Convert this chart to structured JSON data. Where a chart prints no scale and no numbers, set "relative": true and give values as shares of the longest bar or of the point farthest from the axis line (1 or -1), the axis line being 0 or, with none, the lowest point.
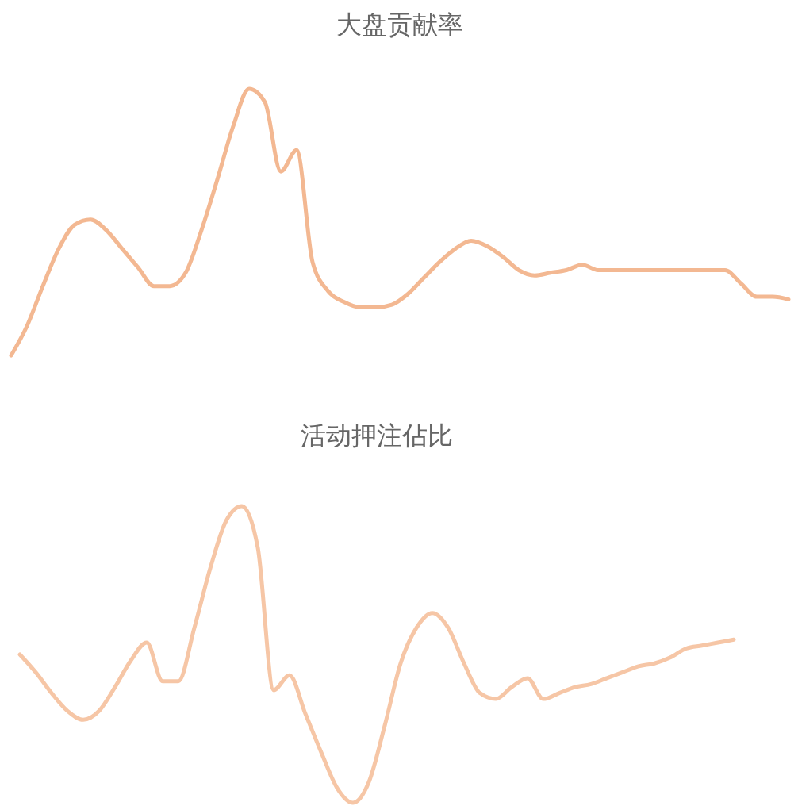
{
  "chart_data": [
    {
      "type": "line",
      "title": "大盘贡献率",
      "relative": true,
      "categories": [
        null,
        null,
        null,
        null,
        null,
        null,
        null,
        null,
        null,
        null,
        null,
        null,
        null,
        null,
        null,
        null,
        null,
        null,
        null,
        null,
        null,
        null,
        null,
        null,
        null,
        null,
        null,
        null,
        null,
        null,
        null,
        null,
        null,
        null,
        null,
        null,
        null,
        null,
        null,
        null,
        null,
        null,
        null,
        null,
        null,
        null,
        null,
        null,
        null,
        null
      ],
      "series": [
        {
          "color": "#f3b892",
          "values": [
            0,
            0.11,
            0.26,
            0.4,
            0.49,
            0.51,
            0.47,
            0.4,
            0.33,
            0.26,
            0.26,
            0.31,
            0.47,
            0.66,
            0.86,
            1,
            0.95,
            0.69,
            0.77,
            0.35,
            0.24,
            0.2,
            0.18,
            0.18,
            0.19,
            0.23,
            0.29,
            0.35,
            0.4,
            0.43,
            0.41,
            0.37,
            0.32,
            0.3,
            0.31,
            0.32,
            0.34,
            0.32,
            0.32,
            0.32,
            0.32,
            0.32,
            0.32,
            0.32,
            0.32,
            0.32,
            0.27,
            0.22,
            0.22,
            0.21
          ]
        }
      ]
    },
    {
      "type": "line",
      "title": "活动押注佔比",
      "relative": true,
      "categories": [
        null,
        null,
        null,
        null,
        null,
        null,
        null,
        null,
        null,
        null,
        null,
        null,
        null,
        null,
        null,
        null,
        null,
        null,
        null,
        null,
        null,
        null,
        null,
        null,
        null,
        null,
        null,
        null,
        null,
        null,
        null,
        null,
        null,
        null,
        null,
        null,
        null,
        null,
        null,
        null,
        null,
        null,
        null,
        null,
        null,
        null
      ],
      "series": [
        {
          "color": "#f6c6a6",
          "values": [
            0.5,
            0.44,
            0.37,
            0.31,
            0.28,
            0.31,
            0.39,
            0.48,
            0.54,
            0.41,
            0.41,
            0.59,
            0.79,
            0.95,
            1,
            0.86,
            0.38,
            0.43,
            0.3,
            0.17,
            0.05,
            0,
            0.07,
            0.26,
            0.47,
            0.59,
            0.64,
            0.59,
            0.47,
            0.37,
            0.35,
            0.39,
            0.42,
            0.35,
            0.37,
            0.39,
            0.4,
            0.42,
            0.44,
            0.46,
            0.47,
            0.49,
            0.52,
            0.53,
            0.54,
            0.55
          ]
        }
      ]
    }
  ]
}
